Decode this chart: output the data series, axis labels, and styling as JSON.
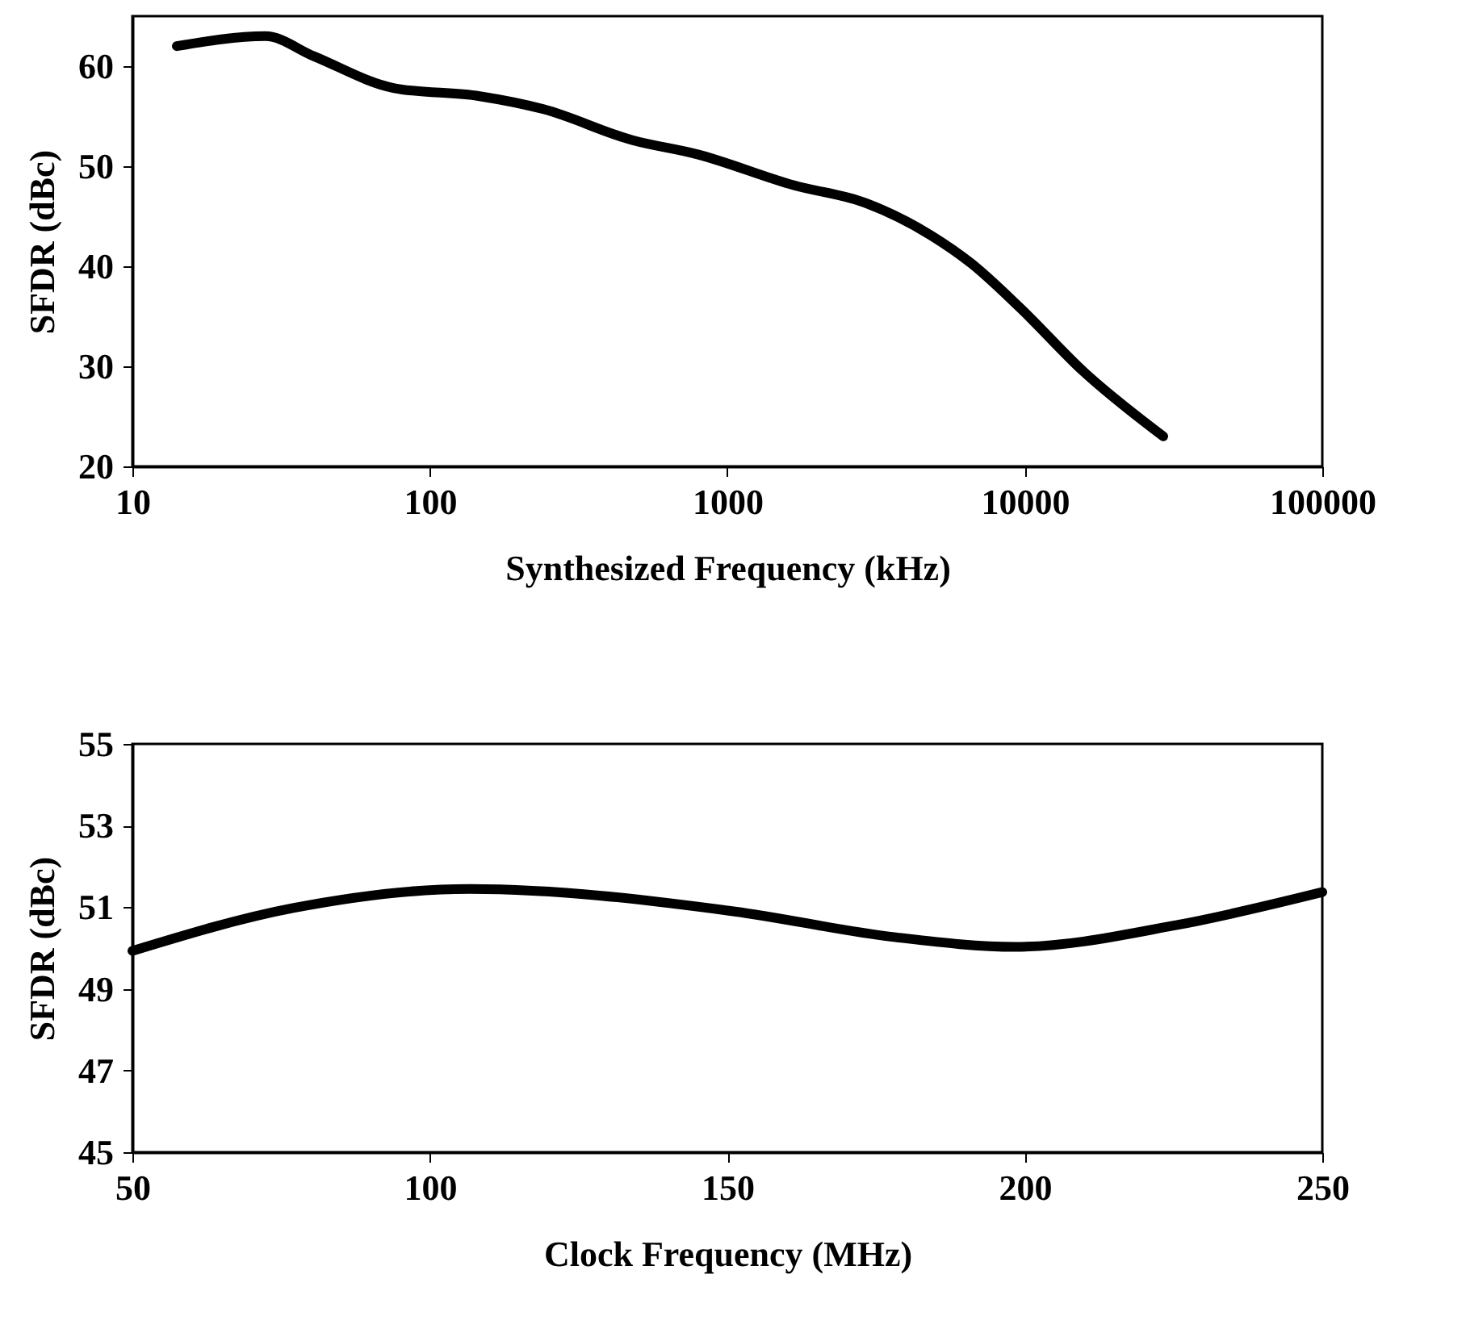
{
  "chart_data": [
    {
      "type": "line",
      "xlabel": "Synthesized Frequency (kHz)",
      "ylabel": "SFDR (dBc)",
      "log": "x",
      "color": "#000000",
      "x": [
        14.1,
        28,
        40.7,
        76,
        147,
        241,
        480,
        790,
        1670,
        2930,
        4830,
        6600,
        9600,
        15850,
        29200
      ],
      "values": [
        62.0,
        63.0,
        61.0,
        57.8,
        57.0,
        55.7,
        52.6,
        51.2,
        48.1,
        46.3,
        43.1,
        40.3,
        35.9,
        29.4,
        23.0
      ],
      "xlim": [
        10,
        100000
      ],
      "xticks": [
        10,
        100,
        1000,
        10000,
        100000
      ],
      "ylim": [
        20,
        65
      ],
      "yticks": [
        20,
        30,
        40,
        50,
        60
      ]
    },
    {
      "type": "line",
      "xlabel": "Clock Frequency (MHz)",
      "ylabel": "SFDR (dBc)",
      "color": "#000000",
      "x": [
        50,
        77,
        106.7,
        151,
        178,
        198.4,
        225.4,
        250
      ],
      "values": [
        49.93,
        50.98,
        51.45,
        50.9,
        50.27,
        50.03,
        50.56,
        51.37
      ],
      "xlim": [
        50,
        250
      ],
      "xticks": [
        50,
        100,
        150,
        200,
        250
      ],
      "ylim": [
        45,
        55
      ],
      "yticks": [
        45,
        47,
        49,
        51,
        53,
        55
      ]
    }
  ]
}
